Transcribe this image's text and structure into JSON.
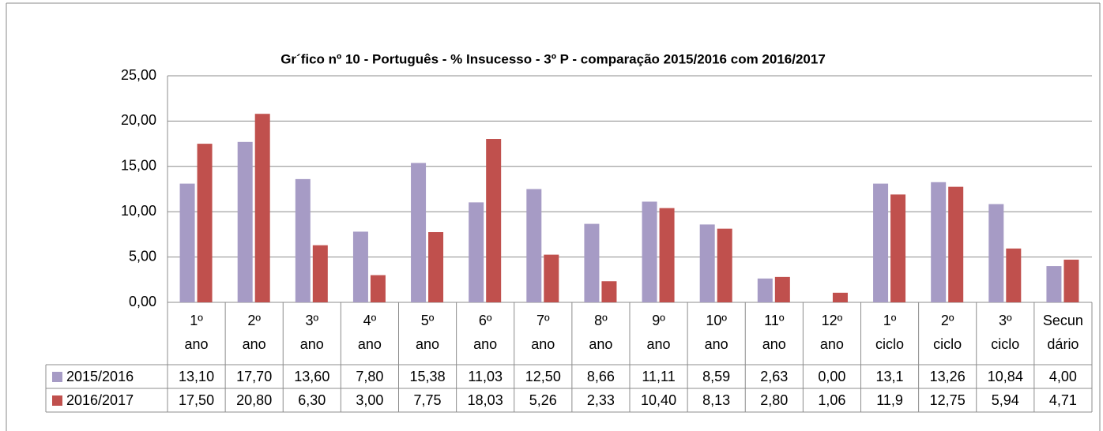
{
  "chart_data": {
    "type": "bar",
    "title": "Gr´fico nº 10 - Português - % Insucesso - 3º P - comparação 2015/2016 com 2016/2017",
    "categories": [
      [
        "1º",
        "ano"
      ],
      [
        "2º",
        "ano"
      ],
      [
        "3º",
        "ano"
      ],
      [
        "4º",
        "ano"
      ],
      [
        "5º",
        "ano"
      ],
      [
        "6º",
        "ano"
      ],
      [
        "7º",
        "ano"
      ],
      [
        "8º",
        "ano"
      ],
      [
        "9º",
        "ano"
      ],
      [
        "10º",
        "ano"
      ],
      [
        "11º",
        "ano"
      ],
      [
        "12º",
        "ano"
      ],
      [
        "1º",
        "ciclo"
      ],
      [
        "2º",
        "ciclo"
      ],
      [
        "3º",
        "ciclo"
      ],
      [
        "Secun",
        "dário"
      ]
    ],
    "series": [
      {
        "name": "2015/2016",
        "color": "#a69bc5",
        "values": [
          13.1,
          17.7,
          13.6,
          7.8,
          15.38,
          11.03,
          12.5,
          8.66,
          11.11,
          8.59,
          2.63,
          0,
          13.1,
          13.26,
          10.84,
          4
        ],
        "value_labels": [
          "13,10",
          "17,70",
          "13,60",
          "7,80",
          "15,38",
          "11,03",
          "12,50",
          "8,66",
          "11,11",
          "8,59",
          "2,63",
          "0,00",
          "13,1",
          "13,26",
          "10,84",
          "4,00"
        ]
      },
      {
        "name": "2016/2017",
        "color": "#c0504d",
        "values": [
          17.5,
          20.8,
          6.3,
          3,
          7.75,
          18.03,
          5.26,
          2.33,
          10.4,
          8.13,
          2.8,
          1.06,
          11.9,
          12.75,
          5.94,
          4.71
        ],
        "value_labels": [
          "17,50",
          "20,80",
          "6,30",
          "3,00",
          "7,75",
          "18,03",
          "5,26",
          "2,33",
          "10,40",
          "8,13",
          "2,80",
          "1,06",
          "11,9",
          "12,75",
          "5,94",
          "4,71"
        ]
      }
    ],
    "ylim": [
      0,
      25
    ],
    "yticks": [
      {
        "value": 0,
        "label": "0,00"
      },
      {
        "value": 5,
        "label": "5,00"
      },
      {
        "value": 10,
        "label": "10,00"
      },
      {
        "value": 15,
        "label": "15,00"
      },
      {
        "value": 20,
        "label": "20,00"
      },
      {
        "value": 25,
        "label": "25,00"
      }
    ],
    "grid": true
  }
}
